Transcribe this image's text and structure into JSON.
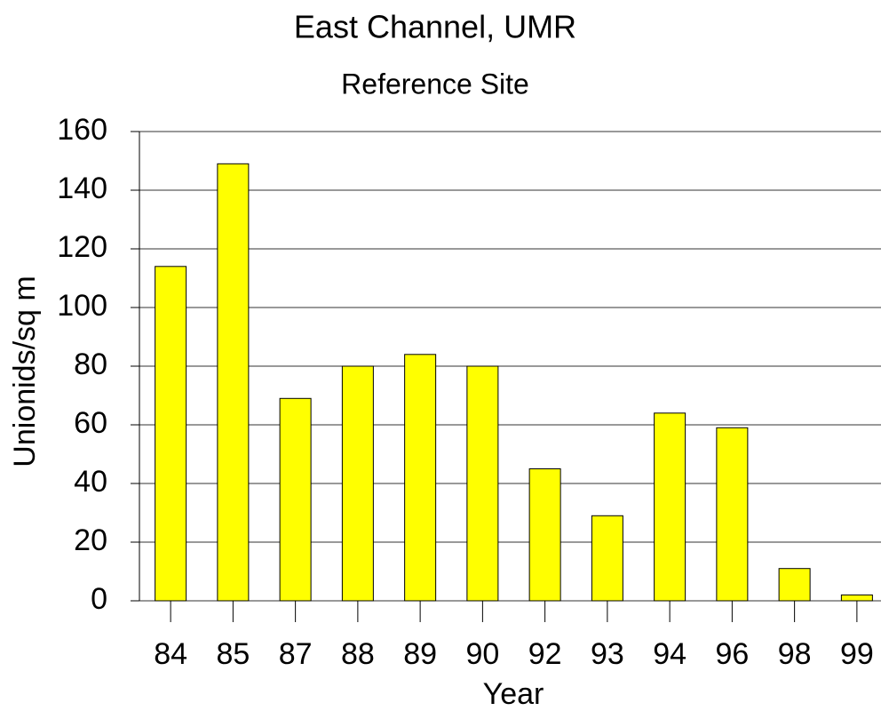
{
  "chart_data": {
    "type": "bar",
    "title": "East Channel, UMR",
    "subtitle": "Reference Site",
    "x_label": "Year",
    "y_label": "Unionids/sq m",
    "categories": [
      "84",
      "85",
      "87",
      "88",
      "89",
      "90",
      "92",
      "93",
      "94",
      "96",
      "98",
      "99"
    ],
    "values": [
      114,
      149,
      69,
      80,
      84,
      80,
      45,
      29,
      64,
      59,
      11,
      2
    ],
    "color": "#ffff00",
    "ylim": [
      0,
      160
    ],
    "yticks": [
      0,
      20,
      40,
      60,
      80,
      100,
      120,
      140,
      160
    ],
    "grid": true
  }
}
